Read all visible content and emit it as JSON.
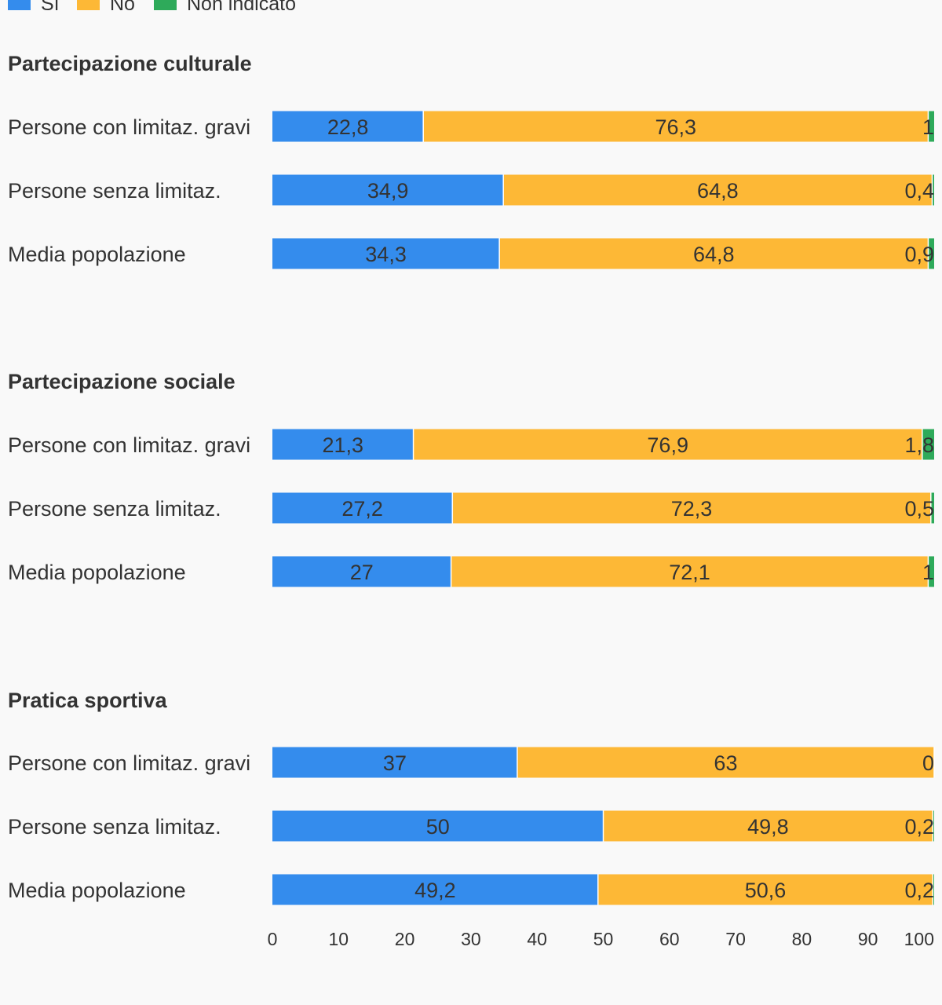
{
  "colors": {
    "background": "#f9f9f9",
    "text": "#333333",
    "si": "#348ced",
    "no": "#fdb836",
    "non_indicato": "#2eaa5a"
  },
  "chart_data": {
    "type": "bar",
    "orientation": "horizontal",
    "stacked": true,
    "legend_placement": "top-left",
    "grid": false,
    "xlim": [
      0,
      100
    ],
    "x_ticks": [
      0,
      10,
      20,
      30,
      40,
      50,
      60,
      70,
      80,
      90,
      100
    ],
    "series": [
      {
        "key": "si",
        "name": "Sì",
        "color": "#348ced"
      },
      {
        "key": "no",
        "name": "No",
        "color": "#fdb836"
      },
      {
        "key": "non_indicato",
        "name": "Non indicato",
        "color": "#2eaa5a"
      }
    ],
    "groups": [
      {
        "title": "Partecipazione culturale",
        "rows": [
          {
            "label": "Persone con limitaz. gravi",
            "values": [
              22.8,
              76.3,
              1
            ],
            "labels": [
              "22,8",
              "76,3",
              "1"
            ]
          },
          {
            "label": "Persone senza limitaz.",
            "values": [
              34.9,
              64.8,
              0.4
            ],
            "labels": [
              "34,9",
              "64,8",
              "0,4"
            ]
          },
          {
            "label": "Media popolazione",
            "values": [
              34.3,
              64.8,
              0.9
            ],
            "labels": [
              "34,3",
              "64,8",
              "0,9"
            ]
          }
        ]
      },
      {
        "title": "Partecipazione sociale",
        "rows": [
          {
            "label": "Persone con limitaz. gravi",
            "values": [
              21.3,
              76.9,
              1.8
            ],
            "labels": [
              "21,3",
              "76,9",
              "1,8"
            ]
          },
          {
            "label": "Persone senza limitaz.",
            "values": [
              27.2,
              72.3,
              0.5
            ],
            "labels": [
              "27,2",
              "72,3",
              "0,5"
            ]
          },
          {
            "label": "Media popolazione",
            "values": [
              27,
              72.1,
              1
            ],
            "labels": [
              "27",
              "72,1",
              "1"
            ]
          }
        ]
      },
      {
        "title": "Pratica sportiva",
        "rows": [
          {
            "label": "Persone con limitaz. gravi",
            "values": [
              37,
              63,
              0
            ],
            "labels": [
              "37",
              "63",
              "0"
            ]
          },
          {
            "label": "Persone senza limitaz.",
            "values": [
              50,
              49.8,
              0.2
            ],
            "labels": [
              "50",
              "49,8",
              "0,2"
            ]
          },
          {
            "label": "Media popolazione",
            "values": [
              49.2,
              50.6,
              0.2
            ],
            "labels": [
              "49,2",
              "50,6",
              "0,2"
            ]
          }
        ]
      }
    ]
  }
}
